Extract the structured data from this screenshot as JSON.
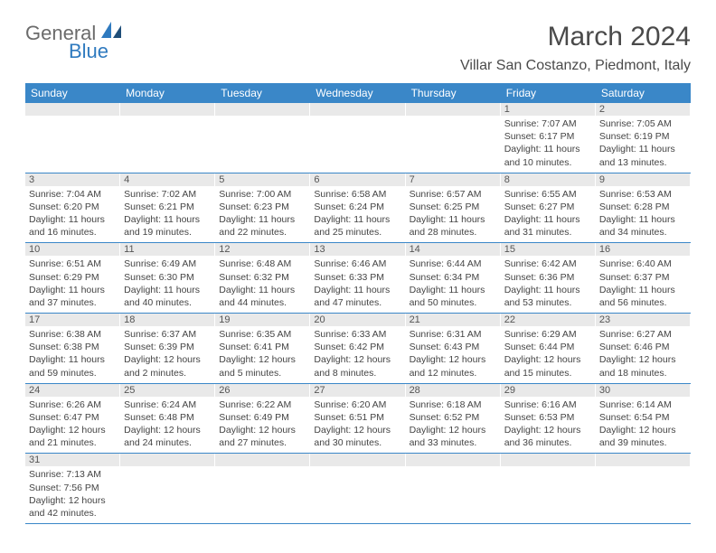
{
  "brand": {
    "general": "General",
    "blue": "Blue"
  },
  "title": "March 2024",
  "location": "Villar San Costanzo, Piedmont, Italy",
  "colors": {
    "header_bg": "#3a87c8",
    "daynum_bg": "#e9e9e9",
    "rule": "#3a87c8",
    "text": "#3a3a3a"
  },
  "weekdays": [
    "Sunday",
    "Monday",
    "Tuesday",
    "Wednesday",
    "Thursday",
    "Friday",
    "Saturday"
  ],
  "weeks": [
    [
      null,
      null,
      null,
      null,
      null,
      {
        "n": "1",
        "sr": "Sunrise: 7:07 AM",
        "ss": "Sunset: 6:17 PM",
        "dl": "Daylight: 11 hours and 10 minutes."
      },
      {
        "n": "2",
        "sr": "Sunrise: 7:05 AM",
        "ss": "Sunset: 6:19 PM",
        "dl": "Daylight: 11 hours and 13 minutes."
      }
    ],
    [
      {
        "n": "3",
        "sr": "Sunrise: 7:04 AM",
        "ss": "Sunset: 6:20 PM",
        "dl": "Daylight: 11 hours and 16 minutes."
      },
      {
        "n": "4",
        "sr": "Sunrise: 7:02 AM",
        "ss": "Sunset: 6:21 PM",
        "dl": "Daylight: 11 hours and 19 minutes."
      },
      {
        "n": "5",
        "sr": "Sunrise: 7:00 AM",
        "ss": "Sunset: 6:23 PM",
        "dl": "Daylight: 11 hours and 22 minutes."
      },
      {
        "n": "6",
        "sr": "Sunrise: 6:58 AM",
        "ss": "Sunset: 6:24 PM",
        "dl": "Daylight: 11 hours and 25 minutes."
      },
      {
        "n": "7",
        "sr": "Sunrise: 6:57 AM",
        "ss": "Sunset: 6:25 PM",
        "dl": "Daylight: 11 hours and 28 minutes."
      },
      {
        "n": "8",
        "sr": "Sunrise: 6:55 AM",
        "ss": "Sunset: 6:27 PM",
        "dl": "Daylight: 11 hours and 31 minutes."
      },
      {
        "n": "9",
        "sr": "Sunrise: 6:53 AM",
        "ss": "Sunset: 6:28 PM",
        "dl": "Daylight: 11 hours and 34 minutes."
      }
    ],
    [
      {
        "n": "10",
        "sr": "Sunrise: 6:51 AM",
        "ss": "Sunset: 6:29 PM",
        "dl": "Daylight: 11 hours and 37 minutes."
      },
      {
        "n": "11",
        "sr": "Sunrise: 6:49 AM",
        "ss": "Sunset: 6:30 PM",
        "dl": "Daylight: 11 hours and 40 minutes."
      },
      {
        "n": "12",
        "sr": "Sunrise: 6:48 AM",
        "ss": "Sunset: 6:32 PM",
        "dl": "Daylight: 11 hours and 44 minutes."
      },
      {
        "n": "13",
        "sr": "Sunrise: 6:46 AM",
        "ss": "Sunset: 6:33 PM",
        "dl": "Daylight: 11 hours and 47 minutes."
      },
      {
        "n": "14",
        "sr": "Sunrise: 6:44 AM",
        "ss": "Sunset: 6:34 PM",
        "dl": "Daylight: 11 hours and 50 minutes."
      },
      {
        "n": "15",
        "sr": "Sunrise: 6:42 AM",
        "ss": "Sunset: 6:36 PM",
        "dl": "Daylight: 11 hours and 53 minutes."
      },
      {
        "n": "16",
        "sr": "Sunrise: 6:40 AM",
        "ss": "Sunset: 6:37 PM",
        "dl": "Daylight: 11 hours and 56 minutes."
      }
    ],
    [
      {
        "n": "17",
        "sr": "Sunrise: 6:38 AM",
        "ss": "Sunset: 6:38 PM",
        "dl": "Daylight: 11 hours and 59 minutes."
      },
      {
        "n": "18",
        "sr": "Sunrise: 6:37 AM",
        "ss": "Sunset: 6:39 PM",
        "dl": "Daylight: 12 hours and 2 minutes."
      },
      {
        "n": "19",
        "sr": "Sunrise: 6:35 AM",
        "ss": "Sunset: 6:41 PM",
        "dl": "Daylight: 12 hours and 5 minutes."
      },
      {
        "n": "20",
        "sr": "Sunrise: 6:33 AM",
        "ss": "Sunset: 6:42 PM",
        "dl": "Daylight: 12 hours and 8 minutes."
      },
      {
        "n": "21",
        "sr": "Sunrise: 6:31 AM",
        "ss": "Sunset: 6:43 PM",
        "dl": "Daylight: 12 hours and 12 minutes."
      },
      {
        "n": "22",
        "sr": "Sunrise: 6:29 AM",
        "ss": "Sunset: 6:44 PM",
        "dl": "Daylight: 12 hours and 15 minutes."
      },
      {
        "n": "23",
        "sr": "Sunrise: 6:27 AM",
        "ss": "Sunset: 6:46 PM",
        "dl": "Daylight: 12 hours and 18 minutes."
      }
    ],
    [
      {
        "n": "24",
        "sr": "Sunrise: 6:26 AM",
        "ss": "Sunset: 6:47 PM",
        "dl": "Daylight: 12 hours and 21 minutes."
      },
      {
        "n": "25",
        "sr": "Sunrise: 6:24 AM",
        "ss": "Sunset: 6:48 PM",
        "dl": "Daylight: 12 hours and 24 minutes."
      },
      {
        "n": "26",
        "sr": "Sunrise: 6:22 AM",
        "ss": "Sunset: 6:49 PM",
        "dl": "Daylight: 12 hours and 27 minutes."
      },
      {
        "n": "27",
        "sr": "Sunrise: 6:20 AM",
        "ss": "Sunset: 6:51 PM",
        "dl": "Daylight: 12 hours and 30 minutes."
      },
      {
        "n": "28",
        "sr": "Sunrise: 6:18 AM",
        "ss": "Sunset: 6:52 PM",
        "dl": "Daylight: 12 hours and 33 minutes."
      },
      {
        "n": "29",
        "sr": "Sunrise: 6:16 AM",
        "ss": "Sunset: 6:53 PM",
        "dl": "Daylight: 12 hours and 36 minutes."
      },
      {
        "n": "30",
        "sr": "Sunrise: 6:14 AM",
        "ss": "Sunset: 6:54 PM",
        "dl": "Daylight: 12 hours and 39 minutes."
      }
    ],
    [
      {
        "n": "31",
        "sr": "Sunrise: 7:13 AM",
        "ss": "Sunset: 7:56 PM",
        "dl": "Daylight: 12 hours and 42 minutes."
      },
      null,
      null,
      null,
      null,
      null,
      null
    ]
  ]
}
